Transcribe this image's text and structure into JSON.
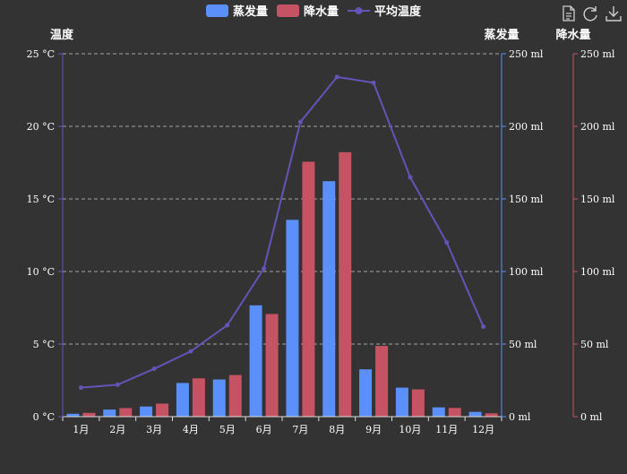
{
  "toolbar": {
    "icons": [
      "data-view-icon",
      "restore-icon",
      "save-image-icon"
    ]
  },
  "chart_data": {
    "type": "bar",
    "categories": [
      "1月",
      "2月",
      "3月",
      "4月",
      "5月",
      "6月",
      "7月",
      "8月",
      "9月",
      "10月",
      "11月",
      "12月"
    ],
    "series": [
      {
        "name": "蒸发量",
        "type": "bar",
        "axis": "evap",
        "color": "#5b8ff9",
        "values": [
          2.0,
          4.9,
          7.0,
          23.2,
          25.6,
          76.7,
          135.6,
          162.2,
          32.6,
          20.0,
          6.4,
          3.3
        ]
      },
      {
        "name": "降水量",
        "type": "bar",
        "axis": "rain",
        "color": "#c65363",
        "values": [
          2.6,
          5.9,
          9.0,
          26.4,
          28.7,
          70.7,
          175.6,
          182.2,
          48.7,
          18.8,
          6.0,
          2.3
        ]
      },
      {
        "name": "平均温度",
        "type": "line",
        "axis": "temp",
        "color": "#6454b8",
        "values": [
          2.0,
          2.2,
          3.3,
          4.5,
          6.3,
          10.2,
          20.3,
          23.4,
          23.0,
          16.5,
          12.0,
          6.2
        ]
      }
    ],
    "axes": {
      "temp": {
        "name": "温度",
        "min": 0,
        "max": 25,
        "interval": 5,
        "unit": "°C",
        "ticks": [
          "0 °C",
          "5 °C",
          "10 °C",
          "15 °C",
          "20 °C",
          "25 °C"
        ],
        "color": "#6454b8"
      },
      "evap": {
        "name": "蒸发量",
        "min": 0,
        "max": 250,
        "interval": 50,
        "unit": "ml",
        "ticks": [
          "0 ml",
          "50 ml",
          "100 ml",
          "150 ml",
          "200 ml",
          "250 ml"
        ],
        "color": "#5b8ff9"
      },
      "rain": {
        "name": "降水量",
        "min": 0,
        "max": 250,
        "interval": 50,
        "unit": "ml",
        "ticks": [
          "0 ml",
          "50 ml",
          "100 ml",
          "150 ml",
          "200 ml",
          "250 ml"
        ],
        "color": "#c65363"
      }
    },
    "grid": true,
    "legend_position": "top-center"
  }
}
